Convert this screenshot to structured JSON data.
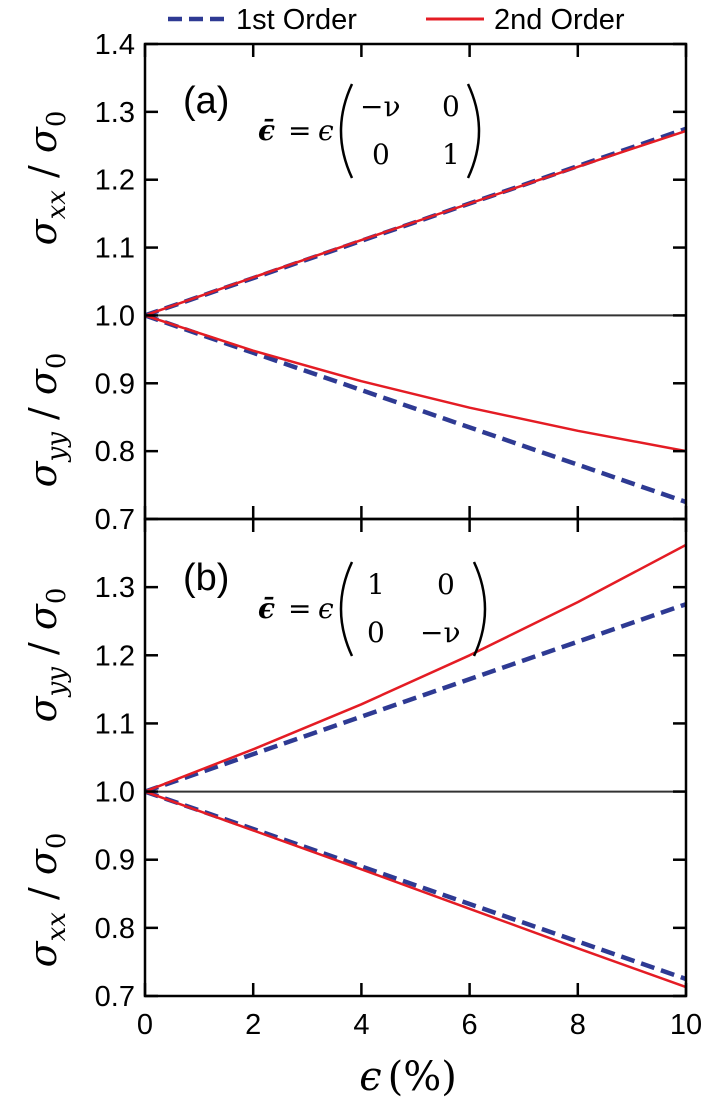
{
  "legend": {
    "position": "top",
    "items": [
      {
        "label": "1st Order",
        "color": "#2e3a93",
        "style": "dashed"
      },
      {
        "label": "2nd Order",
        "color": "#e41c24",
        "style": "solid"
      }
    ]
  },
  "xaxis": {
    "label_symbol": "ϵ",
    "label_unit": "(%)",
    "ticks": [
      "0",
      "2",
      "4",
      "6",
      "8",
      "10"
    ]
  },
  "chart_data": [
    {
      "type": "line",
      "panel_label": "(a)",
      "equation": {
        "lhs": "ϵ̄",
        "eq": "=",
        "factor": "ϵ",
        "matrix": [
          [
            "−ν",
            "0"
          ],
          [
            "0",
            "1"
          ]
        ]
      },
      "ylabel_upper": {
        "base": "σ",
        "sub": "xx",
        "den": "σ",
        "den_sub": "0"
      },
      "ylabel_lower": {
        "base": "σ",
        "sub": "yy",
        "den": "σ",
        "den_sub": "0"
      },
      "xlim": [
        0,
        10
      ],
      "ylim": [
        0.7,
        1.4
      ],
      "yticks": [
        "0.7",
        "0.8",
        "0.9",
        "1.0",
        "1.1",
        "1.2",
        "1.3",
        "1.4"
      ],
      "reference_line": 1.0,
      "series": [
        {
          "name": "1st Order",
          "branch": "upper",
          "x": [
            0,
            2,
            4,
            6,
            8,
            10
          ],
          "y": [
            1.0,
            1.055,
            1.11,
            1.165,
            1.22,
            1.275
          ]
        },
        {
          "name": "2nd Order",
          "branch": "upper",
          "x": [
            0,
            2,
            4,
            6,
            8,
            10
          ],
          "y": [
            1.0,
            1.056,
            1.111,
            1.165,
            1.219,
            1.272
          ]
        },
        {
          "name": "1st Order",
          "branch": "lower",
          "x": [
            0,
            2,
            4,
            6,
            8,
            10
          ],
          "y": [
            1.0,
            0.945,
            0.89,
            0.835,
            0.78,
            0.725
          ]
        },
        {
          "name": "2nd Order",
          "branch": "lower",
          "x": [
            0,
            2,
            4,
            6,
            8,
            10
          ],
          "y": [
            1.0,
            0.948,
            0.903,
            0.864,
            0.83,
            0.8
          ]
        }
      ]
    },
    {
      "type": "line",
      "panel_label": "(b)",
      "equation": {
        "lhs": "ϵ̄",
        "eq": "=",
        "factor": "ϵ",
        "matrix": [
          [
            "1",
            "0"
          ],
          [
            "0",
            "−ν"
          ]
        ]
      },
      "ylabel_upper": {
        "base": "σ",
        "sub": "yy",
        "den": "σ",
        "den_sub": "0"
      },
      "ylabel_lower": {
        "base": "σ",
        "sub": "xx",
        "den": "σ",
        "den_sub": "0"
      },
      "xlim": [
        0,
        10
      ],
      "ylim": [
        0.7,
        1.4
      ],
      "yticks": [
        "0.7",
        "0.8",
        "0.9",
        "1.0",
        "1.1",
        "1.2",
        "1.3"
      ],
      "reference_line": 1.0,
      "series": [
        {
          "name": "1st Order",
          "branch": "upper",
          "x": [
            0,
            2,
            4,
            6,
            8,
            10
          ],
          "y": [
            1.0,
            1.055,
            1.11,
            1.165,
            1.22,
            1.275
          ]
        },
        {
          "name": "2nd Order",
          "branch": "upper",
          "x": [
            0,
            2,
            4,
            6,
            8,
            10
          ],
          "y": [
            1.0,
            1.062,
            1.128,
            1.2,
            1.278,
            1.362
          ]
        },
        {
          "name": "1st Order",
          "branch": "lower",
          "x": [
            0,
            2,
            4,
            6,
            8,
            10
          ],
          "y": [
            1.0,
            0.945,
            0.89,
            0.835,
            0.78,
            0.725
          ]
        },
        {
          "name": "2nd Order",
          "branch": "lower",
          "x": [
            0,
            2,
            4,
            6,
            8,
            10
          ],
          "y": [
            1.0,
            0.943,
            0.886,
            0.828,
            0.77,
            0.713
          ]
        }
      ]
    }
  ]
}
